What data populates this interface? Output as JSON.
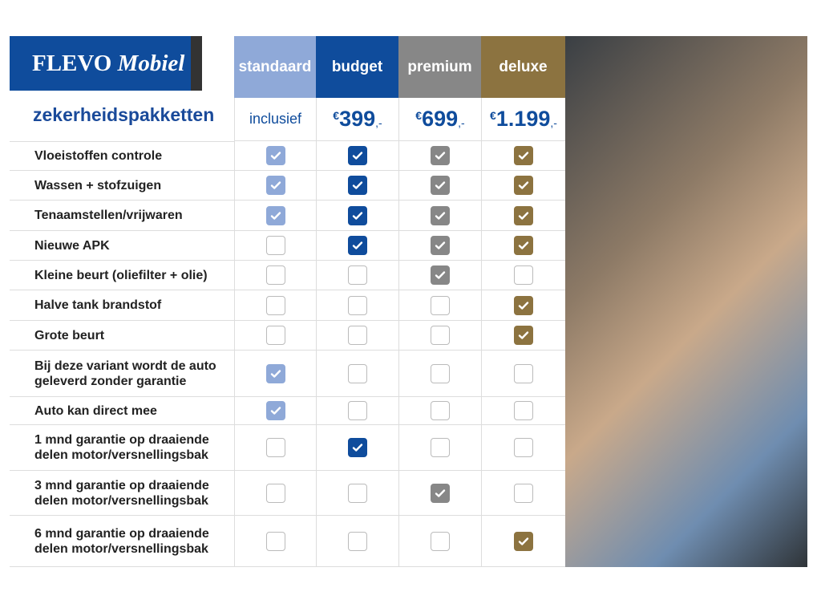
{
  "logo": {
    "brand": "FLEVO",
    "name": "Mobiel"
  },
  "heading": "zekerheidspakketten",
  "columns": [
    {
      "name": "standaard",
      "color": "#8fa9d8",
      "price": {
        "text": "inclusief"
      }
    },
    {
      "name": "budget",
      "color": "#0f4c9c",
      "price": {
        "currency": "€",
        "amount": "399",
        "suffix": ",-"
      }
    },
    {
      "name": "premium",
      "color": "#878787",
      "price": {
        "currency": "€",
        "amount": "699",
        "suffix": ",-"
      }
    },
    {
      "name": "deluxe",
      "color": "#8c7340",
      "price": {
        "currency": "€",
        "amount": "1.199",
        "suffix": ",-"
      }
    }
  ],
  "rows": [
    {
      "label": "Vloeistoffen controle",
      "checks": [
        true,
        true,
        true,
        true
      ]
    },
    {
      "label": "Wassen + stofzuigen",
      "checks": [
        true,
        true,
        true,
        true
      ]
    },
    {
      "label": "Tenaamstellen/vrijwaren",
      "checks": [
        true,
        true,
        true,
        true
      ]
    },
    {
      "label": "Nieuwe APK",
      "checks": [
        false,
        true,
        true,
        true
      ]
    },
    {
      "label": "Kleine beurt (oliefilter + olie)",
      "checks": [
        false,
        false,
        true,
        false
      ]
    },
    {
      "label": "Halve tank brandstof",
      "checks": [
        false,
        false,
        false,
        true
      ]
    },
    {
      "label": "Grote beurt",
      "checks": [
        false,
        false,
        false,
        true
      ]
    },
    {
      "label": "Bij deze variant wordt de auto\ngeleverd zonder garantie",
      "checks": [
        true,
        false,
        false,
        false
      ]
    },
    {
      "label": "Auto kan direct mee",
      "checks": [
        true,
        false,
        false,
        false
      ]
    },
    {
      "label": "1 mnd garantie op draaiende\ndelen motor/versnellingsbak",
      "checks": [
        false,
        true,
        false,
        false
      ]
    },
    {
      "label": "3 mnd garantie op draaiende\ndelen motor/versnellingsbak",
      "checks": [
        false,
        false,
        true,
        false
      ]
    },
    {
      "label": "6 mnd garantie op draaiende\ndelen motor/versnellingsbak",
      "checks": [
        false,
        false,
        false,
        true
      ]
    }
  ]
}
